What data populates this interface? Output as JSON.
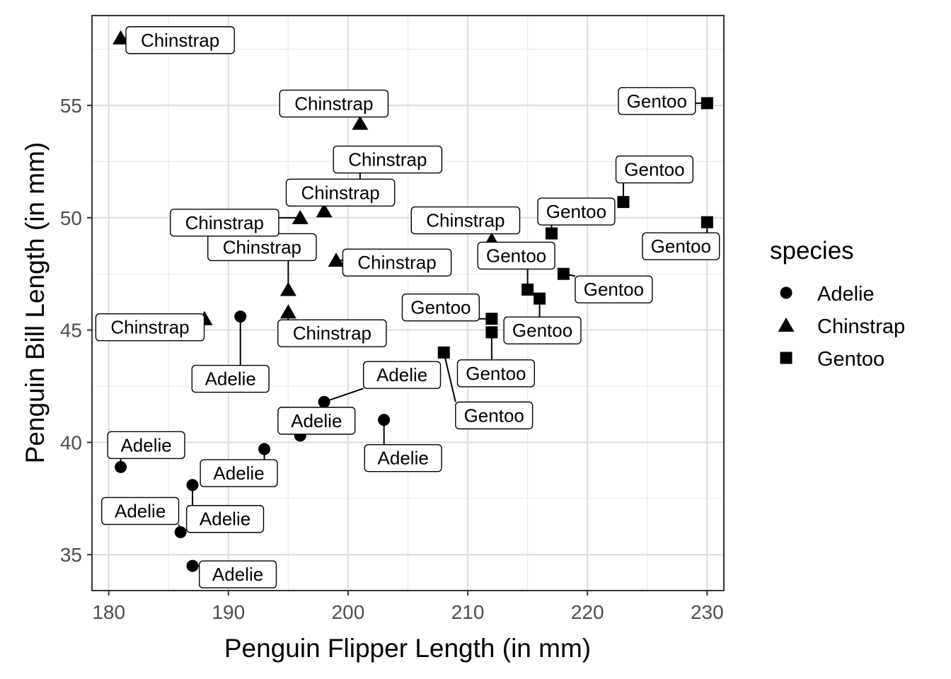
{
  "chart_data": {
    "type": "scatter",
    "xlabel": "Penguin Flipper Length (in mm)",
    "ylabel": "Penguin Bill Length (in mm)",
    "xlim": [
      178.6,
      231.4
    ],
    "ylim": [
      33.4,
      59.0
    ],
    "xticks": [
      180,
      190,
      200,
      210,
      220,
      230
    ],
    "yticks": [
      35,
      40,
      45,
      50,
      55
    ],
    "grid": true,
    "legend": {
      "title": "species",
      "position": "right"
    },
    "series": [
      {
        "name": "Adelie",
        "marker": "circle",
        "points": [
          {
            "x": 181,
            "y": 38.9
          },
          {
            "x": 186,
            "y": 36.0
          },
          {
            "x": 187,
            "y": 38.1
          },
          {
            "x": 187,
            "y": 34.5
          },
          {
            "x": 191,
            "y": 45.6
          },
          {
            "x": 193,
            "y": 39.7
          },
          {
            "x": 196,
            "y": 40.3
          },
          {
            "x": 198,
            "y": 41.8
          },
          {
            "x": 203,
            "y": 41.0
          }
        ]
      },
      {
        "name": "Chinstrap",
        "marker": "triangle",
        "points": [
          {
            "x": 181,
            "y": 58.0
          },
          {
            "x": 188,
            "y": 45.5
          },
          {
            "x": 195,
            "y": 46.8
          },
          {
            "x": 195,
            "y": 45.8
          },
          {
            "x": 196,
            "y": 50.0
          },
          {
            "x": 198,
            "y": 50.3
          },
          {
            "x": 199,
            "y": 48.1
          },
          {
            "x": 201,
            "y": 54.2
          },
          {
            "x": 201,
            "y": 51.3
          },
          {
            "x": 212,
            "y": 49.0
          }
        ]
      },
      {
        "name": "Gentoo",
        "marker": "square",
        "points": [
          {
            "x": 208,
            "y": 44.0
          },
          {
            "x": 212,
            "y": 44.9
          },
          {
            "x": 212,
            "y": 45.5
          },
          {
            "x": 215,
            "y": 46.8
          },
          {
            "x": 216,
            "y": 46.4
          },
          {
            "x": 217,
            "y": 49.3
          },
          {
            "x": 218,
            "y": 47.5
          },
          {
            "x": 223,
            "y": 50.7
          },
          {
            "x": 230,
            "y": 55.1
          },
          {
            "x": 230,
            "y": 49.8
          }
        ]
      }
    ]
  }
}
